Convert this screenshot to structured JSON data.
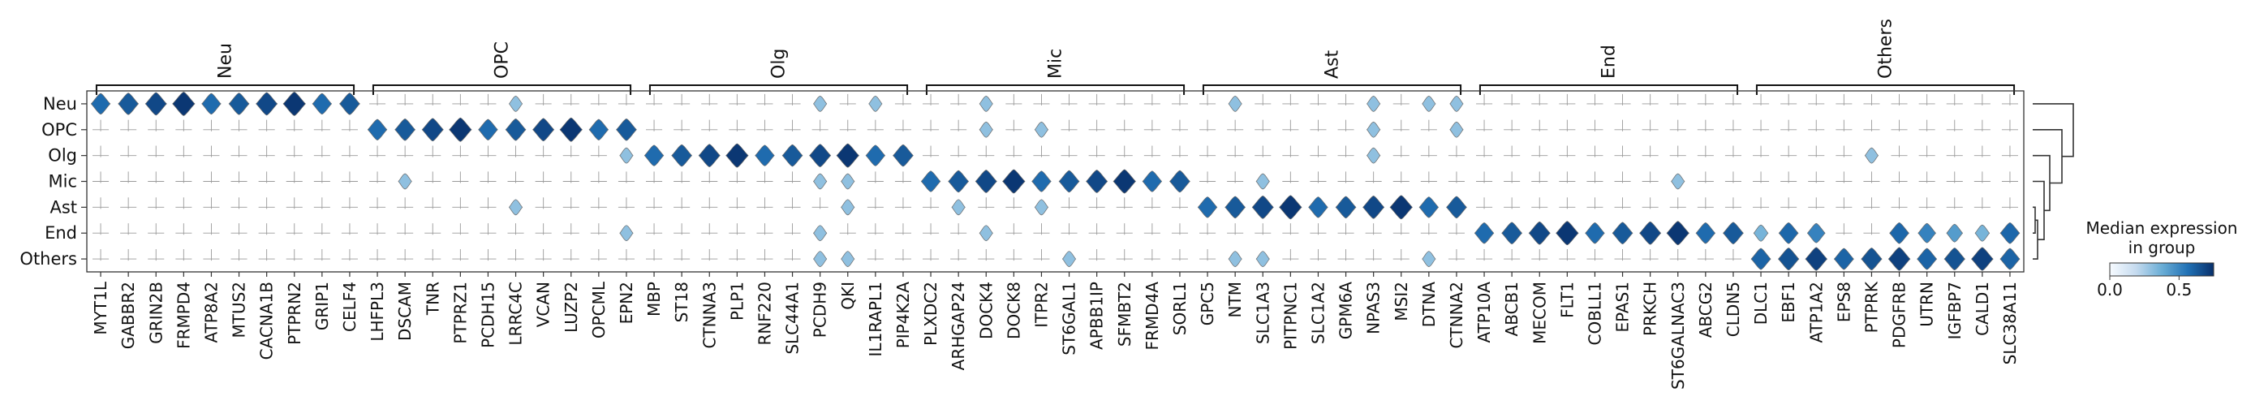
{
  "chart_data": {
    "type": "stacked-violin",
    "rows": [
      "Neu",
      "OPC",
      "Olg",
      "Mic",
      "Ast",
      "End",
      "Others"
    ],
    "groups": [
      {
        "name": "Neu",
        "genes": [
          "MYT1L",
          "GABBR2",
          "GRIN2B",
          "FRMPD4",
          "ATP8A2",
          "MTUS2",
          "CACNA1B",
          "PTPRN2",
          "GRIP1",
          "CELF4"
        ]
      },
      {
        "name": "OPC",
        "genes": [
          "LHFPL3",
          "DSCAM",
          "TNR",
          "PTPRZ1",
          "PCDH15",
          "LRRC4C",
          "VCAN",
          "LUZP2",
          "OPCML",
          "EPN2"
        ]
      },
      {
        "name": "Olg",
        "genes": [
          "MBP",
          "ST18",
          "CTNNA3",
          "PLP1",
          "RNF220",
          "SLC44A1",
          "PCDH9",
          "QKI",
          "IL1RAPL1",
          "PIP4K2A"
        ]
      },
      {
        "name": "Mic",
        "genes": [
          "PLXDC2",
          "ARHGAP24",
          "DOCK4",
          "DOCK8",
          "ITPR2",
          "ST6GAL1",
          "APBB1IP",
          "SFMBT2",
          "FRMD4A",
          "SORL1"
        ]
      },
      {
        "name": "Ast",
        "genes": [
          "GPC5",
          "NTM",
          "SLC1A3",
          "PITPNC1",
          "SLC1A2",
          "GPM6A",
          "NPAS3",
          "MSI2",
          "DTNA",
          "CTNNA2"
        ]
      },
      {
        "name": "End",
        "genes": [
          "ATP10A",
          "ABCB1",
          "MECOM",
          "FLT1",
          "COBLL1",
          "EPAS1",
          "PRKCH",
          "ST6GALNAC3",
          "ABCG2",
          "CLDN5"
        ]
      },
      {
        "name": "Others",
        "genes": [
          "DLC1",
          "EBF1",
          "ATP1A2",
          "EPS8",
          "PTPRK",
          "PDGFRB",
          "UTRN",
          "IGFBP7",
          "CALD1",
          "SLC38A11"
        ]
      }
    ],
    "colorbar": {
      "title_line1": "Median expression",
      "title_line2": "in group",
      "ticks": [
        "0.0",
        "0.5"
      ],
      "range": [
        0,
        0.75
      ],
      "colors": [
        "#f7fbff",
        "#c6dbef",
        "#6baed6",
        "#2171b5",
        "#08306b"
      ]
    },
    "dendrogram": {
      "order": [
        "Neu",
        "OPC",
        "Olg",
        "Mic",
        "Ast",
        "End",
        "Others"
      ],
      "merges": [
        {
          "a": [
            "Ast"
          ],
          "b": [
            "End"
          ],
          "height": 0.06
        },
        {
          "a": [
            "Ast",
            "End"
          ],
          "b": [
            "Others"
          ],
          "height": 0.12
        },
        {
          "a": [
            "Mic"
          ],
          "b": [
            "Ast",
            "End",
            "Others"
          ],
          "height": 0.28
        },
        {
          "a": [
            "Olg"
          ],
          "b": [
            "Mic",
            "Ast",
            "End",
            "Others"
          ],
          "height": 0.42
        },
        {
          "a": [
            "OPC"
          ],
          "b": [
            "Olg",
            "Mic",
            "Ast",
            "End",
            "Others"
          ],
          "height": 0.72
        },
        {
          "a": [
            "Neu"
          ],
          "b": [
            "OPC",
            "Olg",
            "Mic",
            "Ast",
            "End",
            "Others"
          ],
          "height": 1.0
        }
      ]
    }
  }
}
